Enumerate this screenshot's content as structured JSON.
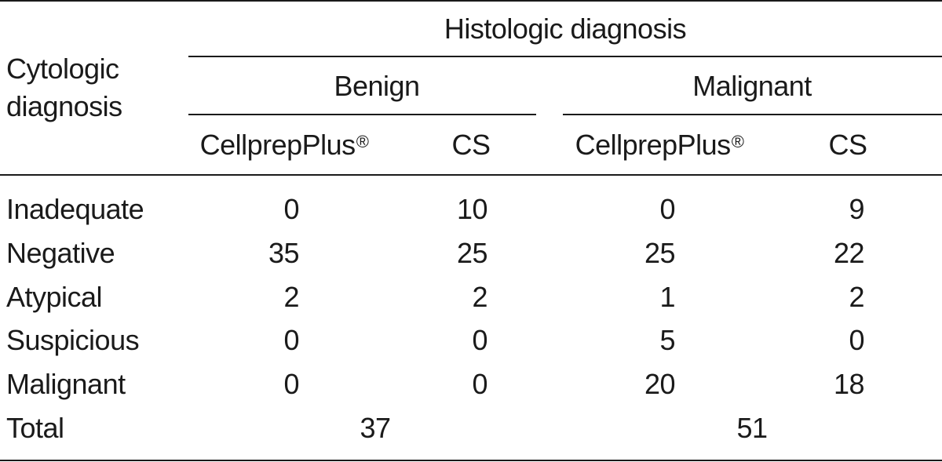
{
  "table": {
    "stub_header": [
      "Cytologic",
      "diagnosis"
    ],
    "group_header": "Histologic diagnosis",
    "groups": [
      {
        "label": "Benign",
        "columns": [
          {
            "label": "CellprepPlus",
            "mark": "®"
          },
          {
            "label": "CS",
            "mark": ""
          }
        ]
      },
      {
        "label": "Malignant",
        "columns": [
          {
            "label": "CellprepPlus",
            "mark": "®"
          },
          {
            "label": "CS",
            "mark": ""
          }
        ]
      }
    ],
    "rows": [
      {
        "label": "Inadequate",
        "values": [
          "0",
          "10",
          "0",
          "9"
        ]
      },
      {
        "label": "Negative",
        "values": [
          "35",
          "25",
          "25",
          "22"
        ]
      },
      {
        "label": "Atypical",
        "values": [
          "2",
          "2",
          "1",
          "2"
        ]
      },
      {
        "label": "Suspicious",
        "values": [
          "0",
          "0",
          "5",
          "0"
        ]
      },
      {
        "label": "Malignant",
        "values": [
          "0",
          "0",
          "20",
          "18"
        ]
      }
    ],
    "total": {
      "label": "Total",
      "benign": "37",
      "malignant": "51"
    }
  }
}
